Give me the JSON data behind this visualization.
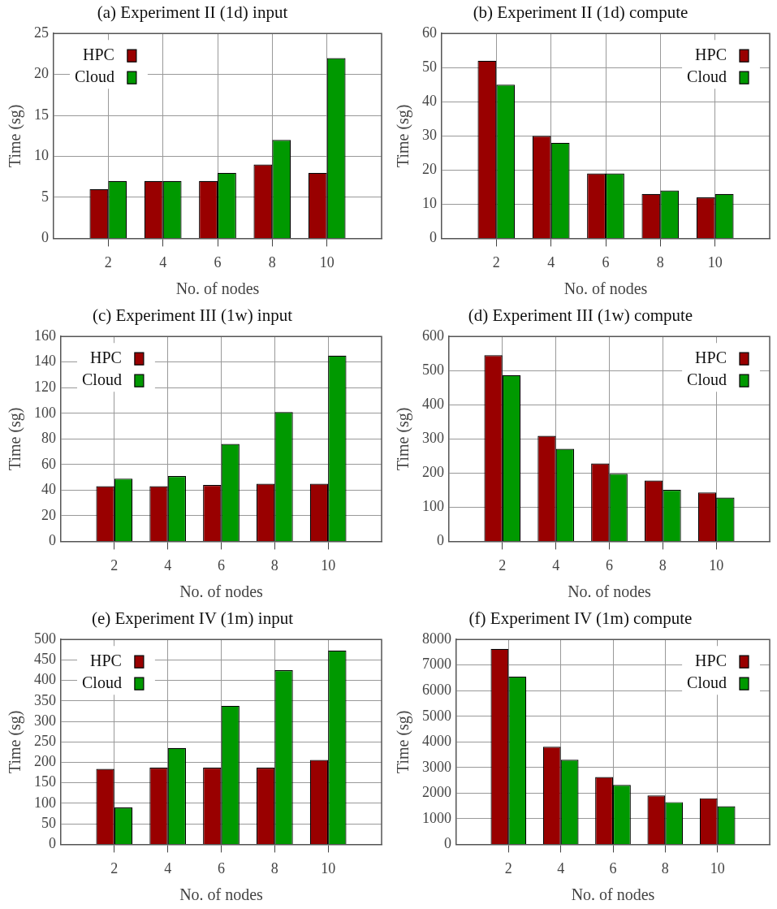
{
  "chart_data": [
    {
      "type": "bar",
      "title": "(a) Experiment II (1d) input",
      "xlabel": "No. of nodes",
      "ylabel": "Time (sg)",
      "categories": [
        "2",
        "4",
        "6",
        "8",
        "10"
      ],
      "series": [
        {
          "name": "HPC",
          "color": "#990000",
          "values": [
            6,
            7,
            7,
            9,
            8
          ]
        },
        {
          "name": "Cloud",
          "color": "#009900",
          "values": [
            7,
            7,
            8,
            12,
            22
          ]
        }
      ],
      "ylim": [
        0,
        25
      ],
      "yticks": [
        0,
        5,
        10,
        15,
        20,
        25
      ],
      "grid": true,
      "legend": "top left"
    },
    {
      "type": "bar",
      "title": "(b) Experiment II (1d) compute",
      "xlabel": "No. of nodes",
      "ylabel": "Time (sg)",
      "categories": [
        "2",
        "4",
        "6",
        "8",
        "10"
      ],
      "series": [
        {
          "name": "HPC",
          "color": "#990000",
          "values": [
            52,
            30,
            19,
            13,
            12
          ]
        },
        {
          "name": "Cloud",
          "color": "#009900",
          "values": [
            45,
            28,
            19,
            14,
            13
          ]
        }
      ],
      "ylim": [
        0,
        60
      ],
      "yticks": [
        0,
        10,
        20,
        30,
        40,
        50,
        60
      ],
      "grid": true,
      "legend": "top right"
    },
    {
      "type": "bar",
      "title": "(c) Experiment III (1w) input",
      "xlabel": "No. of nodes",
      "ylabel": "Time (sg)",
      "categories": [
        "2",
        "4",
        "6",
        "8",
        "10"
      ],
      "series": [
        {
          "name": "HPC",
          "color": "#990000",
          "values": [
            43,
            43,
            44,
            45,
            45
          ]
        },
        {
          "name": "Cloud",
          "color": "#009900",
          "values": [
            49,
            51,
            76,
            101,
            145
          ]
        }
      ],
      "ylim": [
        0,
        160
      ],
      "yticks": [
        0,
        20,
        40,
        60,
        80,
        100,
        120,
        140,
        160
      ],
      "grid": true,
      "legend": "top left"
    },
    {
      "type": "bar",
      "title": "(d) Experiment III (1w) compute",
      "xlabel": "No. of nodes",
      "ylabel": "Time (sg)",
      "categories": [
        "2",
        "4",
        "6",
        "8",
        "10"
      ],
      "series": [
        {
          "name": "HPC",
          "color": "#990000",
          "values": [
            545,
            309,
            228,
            178,
            143
          ]
        },
        {
          "name": "Cloud",
          "color": "#009900",
          "values": [
            487,
            271,
            198,
            151,
            128
          ]
        }
      ],
      "ylim": [
        0,
        600
      ],
      "yticks": [
        0,
        100,
        200,
        300,
        400,
        500,
        600
      ],
      "grid": true,
      "legend": "top right"
    },
    {
      "type": "bar",
      "title": "(e) Experiment IV (1m) input",
      "xlabel": "No. of nodes",
      "ylabel": "Time (sg)",
      "categories": [
        "2",
        "4",
        "6",
        "8",
        "10"
      ],
      "series": [
        {
          "name": "HPC",
          "color": "#990000",
          "values": [
            184,
            187,
            187,
            187,
            206
          ]
        },
        {
          "name": "Cloud",
          "color": "#009900",
          "values": [
            90,
            235,
            338,
            425,
            473
          ]
        }
      ],
      "ylim": [
        0,
        500
      ],
      "yticks": [
        0,
        50,
        100,
        150,
        200,
        250,
        300,
        350,
        400,
        450,
        500
      ],
      "grid": true,
      "legend": "top left"
    },
    {
      "type": "bar",
      "title": "(f) Experiment IV (1m) compute",
      "xlabel": "No. of nodes",
      "ylabel": "Time (sg)",
      "categories": [
        "2",
        "4",
        "6",
        "8",
        "10"
      ],
      "series": [
        {
          "name": "HPC",
          "color": "#990000",
          "values": [
            7630,
            3810,
            2630,
            1910,
            1800
          ]
        },
        {
          "name": "Cloud",
          "color": "#009900",
          "values": [
            6550,
            3300,
            2320,
            1650,
            1490
          ]
        }
      ],
      "ylim": [
        0,
        8000
      ],
      "yticks": [
        0,
        1000,
        2000,
        3000,
        4000,
        5000,
        6000,
        7000,
        8000
      ],
      "grid": true,
      "legend": "top right"
    }
  ]
}
